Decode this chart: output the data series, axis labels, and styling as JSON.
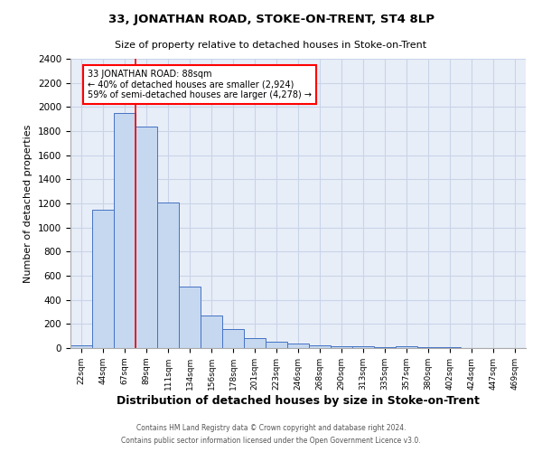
{
  "title": "33, JONATHAN ROAD, STOKE-ON-TRENT, ST4 8LP",
  "subtitle": "Size of property relative to detached houses in Stoke-on-Trent",
  "xlabel": "Distribution of detached houses by size in Stoke-on-Trent",
  "ylabel": "Number of detached properties",
  "bar_labels": [
    "22sqm",
    "44sqm",
    "67sqm",
    "89sqm",
    "111sqm",
    "134sqm",
    "156sqm",
    "178sqm",
    "201sqm",
    "223sqm",
    "246sqm",
    "268sqm",
    "290sqm",
    "313sqm",
    "335sqm",
    "357sqm",
    "380sqm",
    "402sqm",
    "424sqm",
    "447sqm",
    "469sqm"
  ],
  "bar_values": [
    25,
    1150,
    1950,
    1840,
    1210,
    510,
    270,
    155,
    85,
    55,
    40,
    25,
    18,
    15,
    5,
    18,
    5,
    5,
    0,
    0,
    0
  ],
  "bar_color": "#c5d8f0",
  "bar_edge_color": "#4472c4",
  "annotation_text_line1": "33 JONATHAN ROAD: 88sqm",
  "annotation_text_line2": "← 40% of detached houses are smaller (2,924)",
  "annotation_text_line3": "59% of semi-detached houses are larger (4,278) →",
  "annotation_box_color": "white",
  "annotation_box_edge_color": "red",
  "red_line_color": "red",
  "ylim": [
    0,
    2400
  ],
  "yticks": [
    0,
    200,
    400,
    600,
    800,
    1000,
    1200,
    1400,
    1600,
    1800,
    2000,
    2200,
    2400
  ],
  "grid_color": "#c8d4e8",
  "background_color": "#e8eef8",
  "footer_line1": "Contains HM Land Registry data © Crown copyright and database right 2024.",
  "footer_line2": "Contains public sector information licensed under the Open Government Licence v3.0."
}
